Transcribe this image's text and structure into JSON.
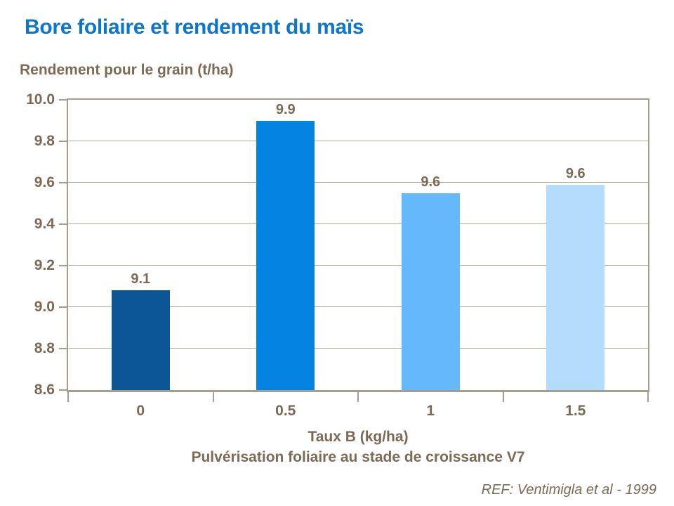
{
  "chart_data": {
    "type": "bar",
    "title": "Bore foliaire et rendement du maïs",
    "y_axis_title": "Rendement pour le grain (t/ha)",
    "x_axis_title": "Taux B (kg/ha)",
    "x_axis_subtitle": "Pulvérisation foliaire au stade de croissance V7",
    "reference": "REF: Ventimigla et al - 1999",
    "categories": [
      "0",
      "0.5",
      "1",
      "1.5"
    ],
    "values": [
      9.08,
      9.9,
      9.55,
      9.59
    ],
    "data_labels": [
      "9.1",
      "9.9",
      "9.6",
      "9.6"
    ],
    "bar_colors": [
      "#0b5696",
      "#0583e2",
      "#65b9fb",
      "#b4dcfc"
    ],
    "ylim": [
      8.6,
      10.0
    ],
    "y_tick_step": 0.2,
    "y_tick_labels": [
      "10.0",
      "9.8",
      "9.6",
      "9.4",
      "9.2",
      "9.0",
      "8.8",
      "8.6"
    ],
    "grid": true,
    "legend": false,
    "colors": {
      "title": "#0b76cc",
      "text": "#7c6a55",
      "axis_line": "#a79d8f",
      "gridline": "#b3a99a",
      "background": "#ffffff"
    }
  }
}
